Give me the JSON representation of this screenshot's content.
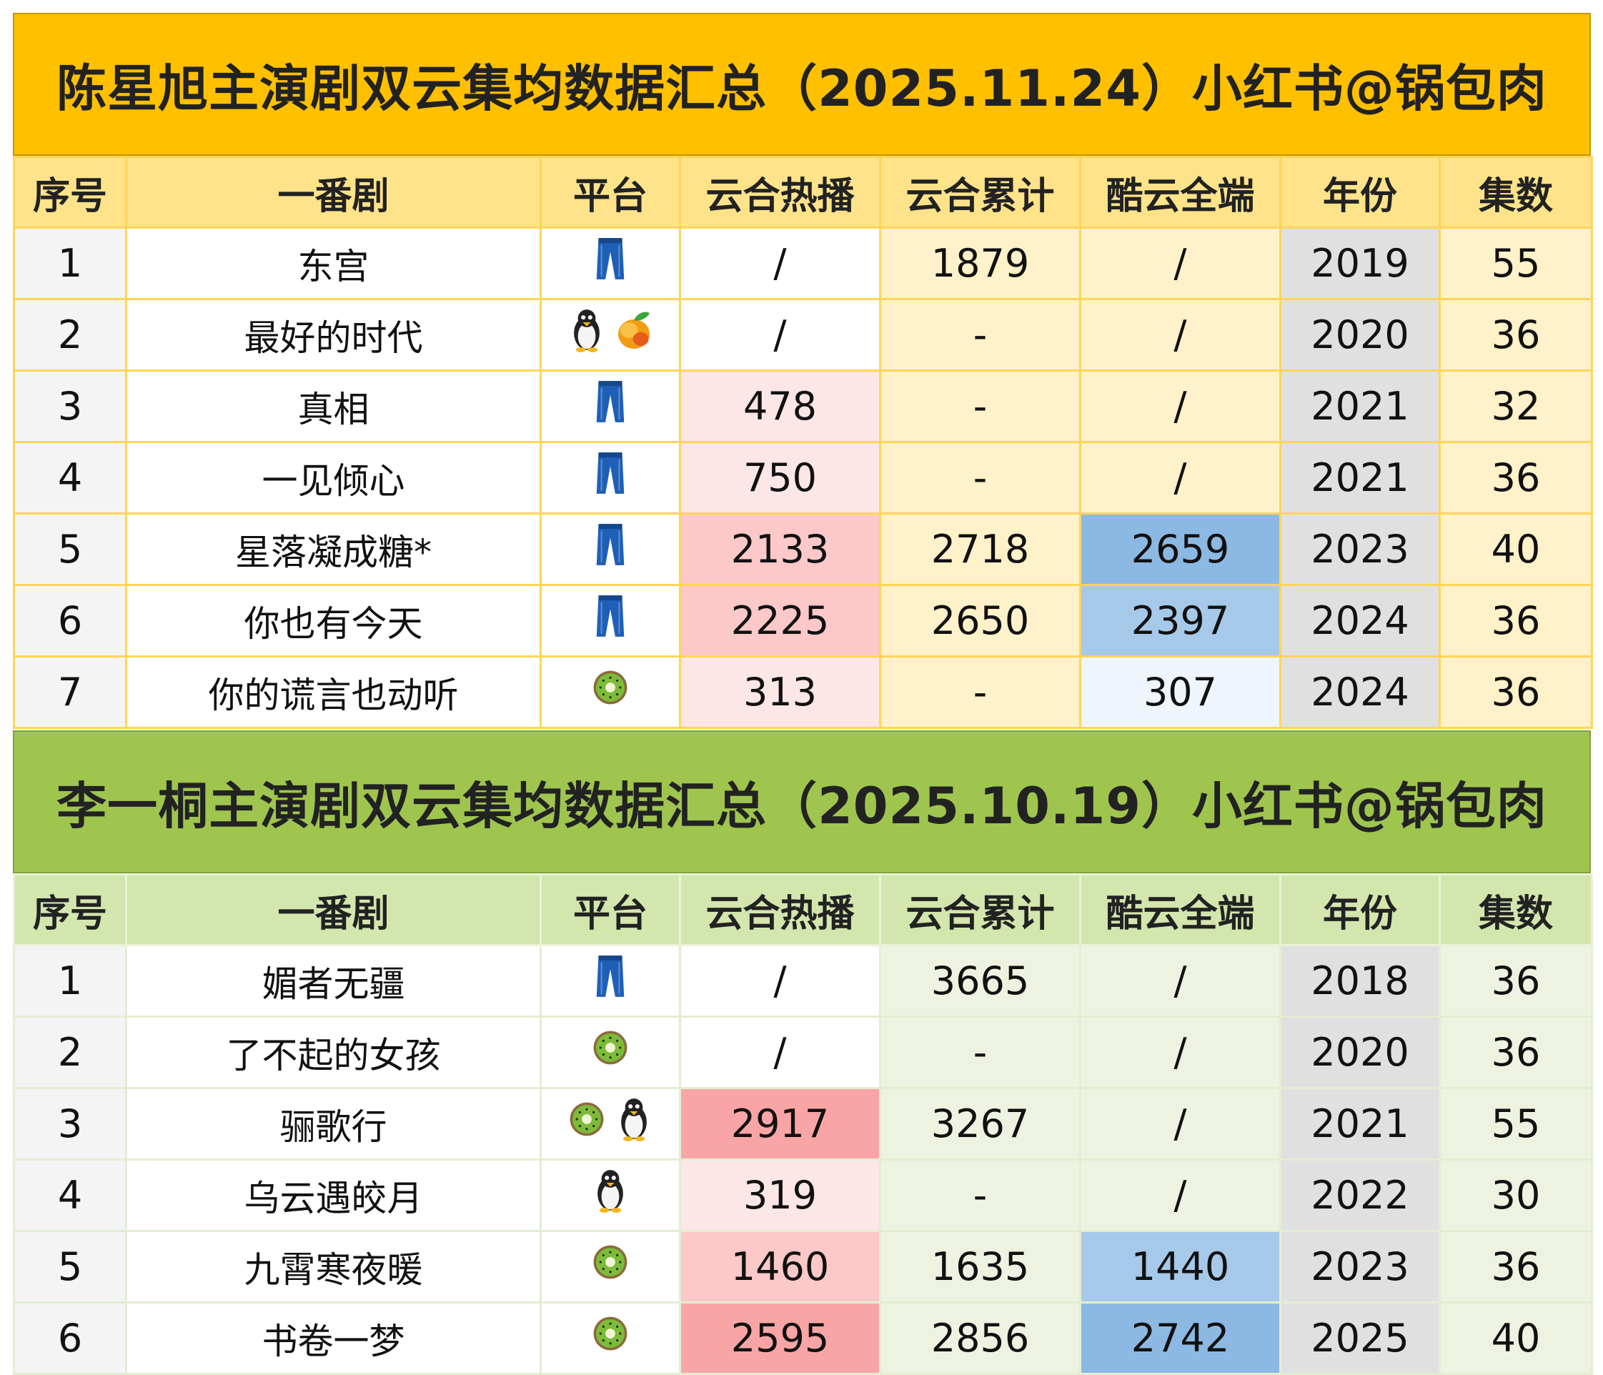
{
  "headers": [
    "序号",
    "一番剧",
    "平台",
    "云合热播",
    "云合累计",
    "酷云全端",
    "年份",
    "集数"
  ],
  "tables": [
    {
      "title": "陈星旭主演剧双云集均数据汇总（2025.11.24）小红书@锅包肉",
      "rows": [
        {
          "idx": "1",
          "name": "东宫",
          "platform": [
            "jeans-icon"
          ],
          "hot": "/",
          "cum": "1879",
          "ku": "/",
          "year": "2019",
          "eps": "55"
        },
        {
          "idx": "2",
          "name": "最好的时代",
          "platform": [
            "penguin-icon",
            "mango-icon"
          ],
          "hot": "/",
          "cum": "-",
          "ku": "/",
          "year": "2020",
          "eps": "36"
        },
        {
          "idx": "3",
          "name": "真相",
          "platform": [
            "jeans-icon"
          ],
          "hot": "478",
          "cum": "-",
          "ku": "/",
          "year": "2021",
          "eps": "32"
        },
        {
          "idx": "4",
          "name": "一见倾心",
          "platform": [
            "jeans-icon"
          ],
          "hot": "750",
          "cum": "-",
          "ku": "/",
          "year": "2021",
          "eps": "36"
        },
        {
          "idx": "5",
          "name": "星落凝成糖*",
          "platform": [
            "jeans-icon"
          ],
          "hot": "2133",
          "cum": "2718",
          "ku": "2659",
          "year": "2023",
          "eps": "40"
        },
        {
          "idx": "6",
          "name": "你也有今天",
          "platform": [
            "jeans-icon"
          ],
          "hot": "2225",
          "cum": "2650",
          "ku": "2397",
          "year": "2024",
          "eps": "36"
        },
        {
          "idx": "7",
          "name": "你的谎言也动听",
          "platform": [
            "kiwi-icon"
          ],
          "hot": "313",
          "cum": "-",
          "ku": "307",
          "year": "2024",
          "eps": "36"
        }
      ]
    },
    {
      "title": "李一桐主演剧双云集均数据汇总（2025.10.19）小红书@锅包肉",
      "rows": [
        {
          "idx": "1",
          "name": "媚者无疆",
          "platform": [
            "jeans-icon"
          ],
          "hot": "/",
          "cum": "3665",
          "ku": "/",
          "year": "2018",
          "eps": "36"
        },
        {
          "idx": "2",
          "name": "了不起的女孩",
          "platform": [
            "kiwi-icon"
          ],
          "hot": "/",
          "cum": "-",
          "ku": "/",
          "year": "2020",
          "eps": "36"
        },
        {
          "idx": "3",
          "name": "骊歌行",
          "platform": [
            "kiwi-icon",
            "penguin-icon"
          ],
          "hot": "2917",
          "cum": "3267",
          "ku": "/",
          "year": "2021",
          "eps": "55"
        },
        {
          "idx": "4",
          "name": "乌云遇皎月",
          "platform": [
            "penguin-icon"
          ],
          "hot": "319",
          "cum": "-",
          "ku": "/",
          "year": "2022",
          "eps": "30"
        },
        {
          "idx": "5",
          "name": "九霄寒夜暖",
          "platform": [
            "kiwi-icon"
          ],
          "hot": "1460",
          "cum": "1635",
          "ku": "1440",
          "year": "2023",
          "eps": "36"
        },
        {
          "idx": "6",
          "name": "书卷一梦",
          "platform": [
            "kiwi-icon"
          ],
          "hot": "2595",
          "cum": "2856",
          "ku": "2742",
          "year": "2025",
          "eps": "40"
        }
      ]
    }
  ]
}
